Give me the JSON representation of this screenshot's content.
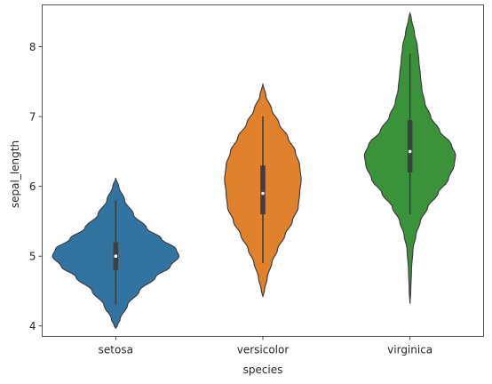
{
  "chart_data": {
    "type": "violin",
    "title": "",
    "xlabel": "species",
    "ylabel": "sepal_length",
    "ylim": [
      3.85,
      8.6
    ],
    "yticks": [
      4,
      5,
      6,
      7,
      8
    ],
    "grid": false,
    "legend": "none",
    "categories": [
      "setosa",
      "versicolor",
      "virginica"
    ],
    "colors": [
      "#3274a1",
      "#e1812c",
      "#3a923a"
    ],
    "outline_color": "#3f3f3f",
    "violins": [
      {
        "category": "setosa",
        "min": 3.97,
        "max": 6.12,
        "q1": 4.8,
        "median": 5.0,
        "q3": 5.2,
        "whisker_low": 4.3,
        "whisker_high": 5.8,
        "max_half_width": 0.43,
        "profile": [
          [
            3.97,
            0.0
          ],
          [
            4.0,
            0.01
          ],
          [
            4.1,
            0.03
          ],
          [
            4.3,
            0.08
          ],
          [
            4.5,
            0.16
          ],
          [
            4.7,
            0.27
          ],
          [
            4.85,
            0.37
          ],
          [
            5.0,
            0.43
          ],
          [
            5.1,
            0.41
          ],
          [
            5.25,
            0.31
          ],
          [
            5.4,
            0.21
          ],
          [
            5.6,
            0.12
          ],
          [
            5.8,
            0.06
          ],
          [
            6.0,
            0.02
          ],
          [
            6.12,
            0.0
          ]
        ]
      },
      {
        "category": "versicolor",
        "min": 4.42,
        "max": 7.47,
        "q1": 5.6,
        "median": 5.9,
        "q3": 6.3,
        "whisker_low": 4.9,
        "whisker_high": 7.0,
        "max_half_width": 0.26,
        "profile": [
          [
            4.42,
            0.0
          ],
          [
            4.5,
            0.01
          ],
          [
            4.7,
            0.03
          ],
          [
            4.9,
            0.06
          ],
          [
            5.1,
            0.1
          ],
          [
            5.3,
            0.15
          ],
          [
            5.5,
            0.2
          ],
          [
            5.7,
            0.24
          ],
          [
            5.9,
            0.25
          ],
          [
            6.1,
            0.26
          ],
          [
            6.3,
            0.25
          ],
          [
            6.5,
            0.22
          ],
          [
            6.7,
            0.17
          ],
          [
            6.9,
            0.11
          ],
          [
            7.1,
            0.06
          ],
          [
            7.3,
            0.02
          ],
          [
            7.47,
            0.0
          ]
        ]
      },
      {
        "category": "virginica",
        "min": 4.32,
        "max": 8.48,
        "q1": 6.2,
        "median": 6.5,
        "q3": 6.95,
        "whisker_low": 5.6,
        "whisker_high": 7.9,
        "max_half_width": 0.31,
        "profile": [
          [
            4.32,
            0.0
          ],
          [
            4.5,
            0.005
          ],
          [
            4.8,
            0.01
          ],
          [
            5.1,
            0.02
          ],
          [
            5.3,
            0.04
          ],
          [
            5.5,
            0.07
          ],
          [
            5.7,
            0.12
          ],
          [
            5.9,
            0.19
          ],
          [
            6.1,
            0.26
          ],
          [
            6.3,
            0.3
          ],
          [
            6.45,
            0.31
          ],
          [
            6.6,
            0.28
          ],
          [
            6.8,
            0.2
          ],
          [
            7.0,
            0.14
          ],
          [
            7.2,
            0.1
          ],
          [
            7.4,
            0.08
          ],
          [
            7.6,
            0.07
          ],
          [
            7.8,
            0.06
          ],
          [
            8.0,
            0.05
          ],
          [
            8.2,
            0.03
          ],
          [
            8.4,
            0.01
          ],
          [
            8.48,
            0.0
          ]
        ]
      }
    ]
  }
}
